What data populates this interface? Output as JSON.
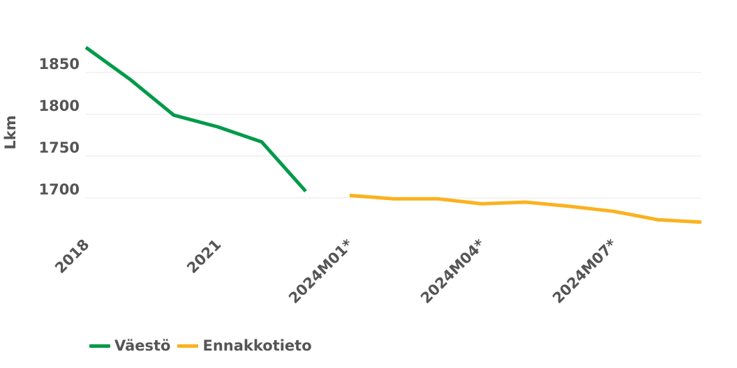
{
  "chart_data": {
    "type": "line",
    "ylabel": "Lkm",
    "xlabel": "",
    "ylim": [
      1660,
      1895
    ],
    "yticks": [
      1700,
      1750,
      1800,
      1850
    ],
    "grid": true,
    "legend_position": "bottom-left",
    "x": [
      "2018",
      "2019",
      "2020",
      "2021",
      "2022",
      "2023",
      "2024M01*",
      "2024M02*",
      "2024M03*",
      "2024M04*",
      "2024M05*",
      "2024M06*",
      "2024M07*",
      "2024M08*",
      "2024M09*"
    ],
    "xtick_labels": [
      "2018",
      "2021",
      "2024M01*",
      "2024M04*",
      "2024M07*"
    ],
    "series": [
      {
        "name": "Väestö",
        "color": "#009a49",
        "values": [
          1880,
          1842,
          1799,
          1785,
          1767,
          1708,
          null,
          null,
          null,
          null,
          null,
          null,
          null,
          null,
          null
        ]
      },
      {
        "name": "Ennakkotieto",
        "color": "#fbb21f",
        "values": [
          null,
          null,
          null,
          null,
          null,
          null,
          1703,
          1699,
          1699,
          1693,
          1695,
          1690,
          1684,
          1674,
          1671
        ]
      }
    ]
  }
}
